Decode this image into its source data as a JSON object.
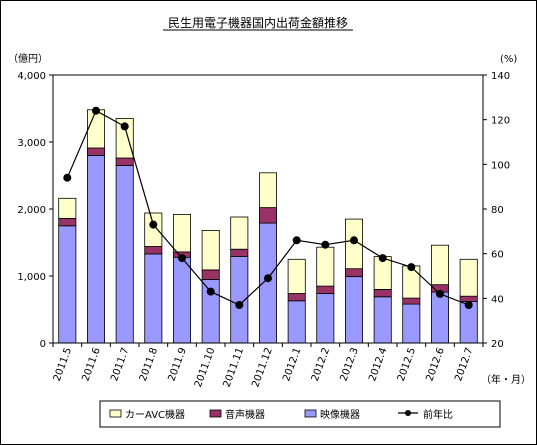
{
  "chart_data": {
    "type": "bar",
    "title": "民生用電子機器国内出荷金額推移",
    "y_left_unit": "（億円）",
    "y_right_unit": "(%)",
    "x_unit": "（年・月）",
    "ylim_left": [
      0,
      4000
    ],
    "ylim_right": [
      20,
      140
    ],
    "yticks_left": [
      "0",
      "1,000",
      "2,000",
      "3,000",
      "4,000"
    ],
    "yticks_right": [
      "20",
      "40",
      "60",
      "80",
      "100",
      "120",
      "140"
    ],
    "categories": [
      "2011.5",
      "2011.6",
      "2011.7",
      "2011.8",
      "2011.9",
      "2011.10",
      "2011.11",
      "2011.12",
      "2012.1",
      "2012.2",
      "2012.3",
      "2012.4",
      "2012.5",
      "2012.6",
      "2012.7"
    ],
    "series": [
      {
        "name": "映像機器",
        "type": "bar",
        "color": "#9999ff",
        "values": [
          1750,
          2800,
          2650,
          1330,
          1280,
          950,
          1290,
          1790,
          630,
          740,
          990,
          690,
          580,
          760,
          620
        ]
      },
      {
        "name": "音声機器",
        "type": "bar",
        "color": "#993366",
        "values": [
          110,
          110,
          110,
          110,
          80,
          140,
          110,
          230,
          110,
          110,
          120,
          110,
          90,
          110,
          80
        ]
      },
      {
        "name": "カーAVC機器",
        "type": "bar",
        "color": "#ffffcc",
        "values": [
          300,
          570,
          590,
          500,
          560,
          590,
          480,
          520,
          510,
          580,
          740,
          490,
          480,
          590,
          550
        ]
      },
      {
        "name": "前年比",
        "type": "line",
        "axis": "right",
        "color": "#000000",
        "values": [
          94,
          124,
          117,
          73,
          58,
          43,
          37,
          49,
          66,
          64,
          66,
          58,
          54,
          42,
          37
        ]
      }
    ],
    "legend_position": "bottom",
    "grid": false
  }
}
